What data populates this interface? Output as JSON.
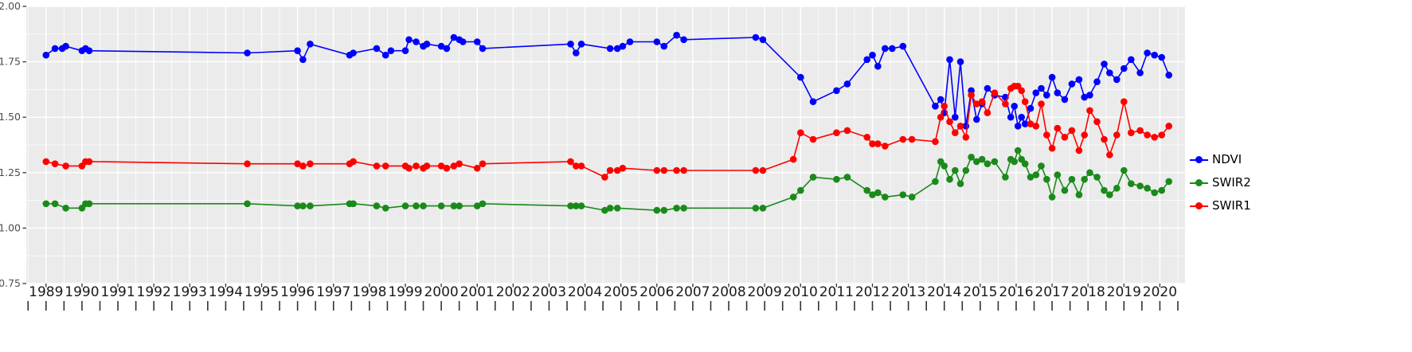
{
  "figure": {
    "background": "#FFFFFF",
    "panel_background": "#EBEBEB",
    "grid_major_color": "#FFFFFF",
    "grid_minor_color": "#F7F7F7",
    "tick_color": "#333333",
    "y_label_color": "#4D4D4D",
    "x_label_color": "#1A1A1A"
  },
  "chart_data": {
    "type": "line",
    "title": "",
    "xlabel": "",
    "ylabel": "",
    "grid": true,
    "legend_position": "right",
    "xlim": [
      1988.45,
      2020.7
    ],
    "ylim": [
      0.75,
      2.0
    ],
    "x_tick_labels": [
      "1989",
      "1990",
      "1991",
      "1992",
      "1993",
      "1994",
      "1995",
      "1996",
      "1997",
      "1998",
      "1999",
      "2000",
      "2001",
      "2002",
      "2003",
      "2004",
      "2005",
      "2006",
      "2007",
      "2008",
      "2009",
      "2010",
      "2011",
      "2012",
      "2013",
      "2014",
      "2015",
      "2016",
      "2017",
      "2018",
      "2019",
      "2020"
    ],
    "y_tick_labels": [
      "2.00",
      "1.75",
      "1.50",
      "1.25",
      "1.00",
      "0.75"
    ],
    "y_tick_values": [
      2.0,
      1.75,
      1.5,
      1.25,
      1.0,
      0.75
    ],
    "series": [
      {
        "name": "NDVI",
        "color": "#0000FF",
        "points": [
          [
            1989.0,
            1.78
          ],
          [
            1989.25,
            1.81
          ],
          [
            1989.45,
            1.81
          ],
          [
            1989.55,
            1.82
          ],
          [
            1990.0,
            1.8
          ],
          [
            1990.1,
            1.81
          ],
          [
            1990.2,
            1.8
          ],
          [
            1994.6,
            1.79
          ],
          [
            1996.0,
            1.8
          ],
          [
            1996.15,
            1.76
          ],
          [
            1996.35,
            1.83
          ],
          [
            1997.45,
            1.78
          ],
          [
            1997.55,
            1.79
          ],
          [
            1998.2,
            1.81
          ],
          [
            1998.45,
            1.78
          ],
          [
            1998.6,
            1.8
          ],
          [
            1999.0,
            1.8
          ],
          [
            1999.1,
            1.85
          ],
          [
            1999.3,
            1.84
          ],
          [
            1999.5,
            1.82
          ],
          [
            1999.6,
            1.83
          ],
          [
            2000.0,
            1.82
          ],
          [
            2000.15,
            1.81
          ],
          [
            2000.35,
            1.86
          ],
          [
            2000.5,
            1.85
          ],
          [
            2000.6,
            1.84
          ],
          [
            2001.0,
            1.84
          ],
          [
            2001.15,
            1.81
          ],
          [
            2003.6,
            1.83
          ],
          [
            2003.75,
            1.79
          ],
          [
            2003.9,
            1.83
          ],
          [
            2004.7,
            1.81
          ],
          [
            2004.9,
            1.81
          ],
          [
            2005.05,
            1.82
          ],
          [
            2005.25,
            1.84
          ],
          [
            2006.0,
            1.84
          ],
          [
            2006.2,
            1.82
          ],
          [
            2006.55,
            1.87
          ],
          [
            2006.75,
            1.85
          ],
          [
            2008.75,
            1.86
          ],
          [
            2008.95,
            1.85
          ],
          [
            2010.0,
            1.68
          ],
          [
            2010.35,
            1.57
          ],
          [
            2011.0,
            1.62
          ],
          [
            2011.3,
            1.65
          ],
          [
            2011.85,
            1.76
          ],
          [
            2012.0,
            1.78
          ],
          [
            2012.15,
            1.73
          ],
          [
            2012.35,
            1.81
          ],
          [
            2012.55,
            1.81
          ],
          [
            2012.85,
            1.82
          ],
          [
            2013.75,
            1.55
          ],
          [
            2013.9,
            1.58
          ],
          [
            2014.0,
            1.52
          ],
          [
            2014.15,
            1.76
          ],
          [
            2014.3,
            1.5
          ],
          [
            2014.45,
            1.75
          ],
          [
            2014.6,
            1.46
          ],
          [
            2014.75,
            1.62
          ],
          [
            2014.9,
            1.49
          ],
          [
            2015.05,
            1.56
          ],
          [
            2015.2,
            1.63
          ],
          [
            2015.4,
            1.6
          ],
          [
            2015.7,
            1.59
          ],
          [
            2015.85,
            1.5
          ],
          [
            2015.95,
            1.55
          ],
          [
            2016.05,
            1.46
          ],
          [
            2016.15,
            1.5
          ],
          [
            2016.25,
            1.47
          ],
          [
            2016.4,
            1.54
          ],
          [
            2016.55,
            1.61
          ],
          [
            2016.7,
            1.63
          ],
          [
            2016.85,
            1.6
          ],
          [
            2017.0,
            1.68
          ],
          [
            2017.15,
            1.61
          ],
          [
            2017.35,
            1.58
          ],
          [
            2017.55,
            1.65
          ],
          [
            2017.75,
            1.67
          ],
          [
            2017.9,
            1.59
          ],
          [
            2018.05,
            1.6
          ],
          [
            2018.25,
            1.66
          ],
          [
            2018.45,
            1.74
          ],
          [
            2018.6,
            1.7
          ],
          [
            2018.8,
            1.67
          ],
          [
            2019.0,
            1.72
          ],
          [
            2019.2,
            1.76
          ],
          [
            2019.45,
            1.7
          ],
          [
            2019.65,
            1.79
          ],
          [
            2019.85,
            1.78
          ],
          [
            2020.05,
            1.77
          ],
          [
            2020.25,
            1.69
          ]
        ]
      },
      {
        "name": "SWIR2",
        "color": "#1A8A1A",
        "points": [
          [
            1989.0,
            1.11
          ],
          [
            1989.25,
            1.11
          ],
          [
            1989.55,
            1.09
          ],
          [
            1990.0,
            1.09
          ],
          [
            1990.1,
            1.11
          ],
          [
            1990.2,
            1.11
          ],
          [
            1994.6,
            1.11
          ],
          [
            1996.0,
            1.1
          ],
          [
            1996.15,
            1.1
          ],
          [
            1996.35,
            1.1
          ],
          [
            1997.45,
            1.11
          ],
          [
            1997.55,
            1.11
          ],
          [
            1998.2,
            1.1
          ],
          [
            1998.45,
            1.09
          ],
          [
            1999.0,
            1.1
          ],
          [
            1999.3,
            1.1
          ],
          [
            1999.5,
            1.1
          ],
          [
            2000.0,
            1.1
          ],
          [
            2000.35,
            1.1
          ],
          [
            2000.5,
            1.1
          ],
          [
            2001.0,
            1.1
          ],
          [
            2001.15,
            1.11
          ],
          [
            2003.6,
            1.1
          ],
          [
            2003.75,
            1.1
          ],
          [
            2003.9,
            1.1
          ],
          [
            2004.55,
            1.08
          ],
          [
            2004.7,
            1.09
          ],
          [
            2004.9,
            1.09
          ],
          [
            2006.0,
            1.08
          ],
          [
            2006.2,
            1.08
          ],
          [
            2006.55,
            1.09
          ],
          [
            2006.75,
            1.09
          ],
          [
            2008.75,
            1.09
          ],
          [
            2008.95,
            1.09
          ],
          [
            2009.8,
            1.14
          ],
          [
            2010.0,
            1.17
          ],
          [
            2010.35,
            1.23
          ],
          [
            2011.0,
            1.22
          ],
          [
            2011.3,
            1.23
          ],
          [
            2011.85,
            1.17
          ],
          [
            2012.0,
            1.15
          ],
          [
            2012.15,
            1.16
          ],
          [
            2012.35,
            1.14
          ],
          [
            2012.85,
            1.15
          ],
          [
            2013.1,
            1.14
          ],
          [
            2013.75,
            1.21
          ],
          [
            2013.9,
            1.3
          ],
          [
            2014.0,
            1.28
          ],
          [
            2014.15,
            1.22
          ],
          [
            2014.3,
            1.26
          ],
          [
            2014.45,
            1.2
          ],
          [
            2014.6,
            1.26
          ],
          [
            2014.75,
            1.32
          ],
          [
            2014.9,
            1.3
          ],
          [
            2015.05,
            1.31
          ],
          [
            2015.2,
            1.29
          ],
          [
            2015.4,
            1.3
          ],
          [
            2015.7,
            1.23
          ],
          [
            2015.85,
            1.31
          ],
          [
            2015.95,
            1.3
          ],
          [
            2016.05,
            1.35
          ],
          [
            2016.15,
            1.31
          ],
          [
            2016.25,
            1.29
          ],
          [
            2016.4,
            1.23
          ],
          [
            2016.55,
            1.24
          ],
          [
            2016.7,
            1.28
          ],
          [
            2016.85,
            1.22
          ],
          [
            2017.0,
            1.14
          ],
          [
            2017.15,
            1.24
          ],
          [
            2017.35,
            1.17
          ],
          [
            2017.55,
            1.22
          ],
          [
            2017.75,
            1.15
          ],
          [
            2017.9,
            1.22
          ],
          [
            2018.05,
            1.25
          ],
          [
            2018.25,
            1.23
          ],
          [
            2018.45,
            1.17
          ],
          [
            2018.6,
            1.15
          ],
          [
            2018.8,
            1.18
          ],
          [
            2019.0,
            1.26
          ],
          [
            2019.2,
            1.2
          ],
          [
            2019.45,
            1.19
          ],
          [
            2019.65,
            1.18
          ],
          [
            2019.85,
            1.16
          ],
          [
            2020.05,
            1.17
          ],
          [
            2020.25,
            1.21
          ]
        ]
      },
      {
        "name": "SWIR1",
        "color": "#FF0000",
        "points": [
          [
            1989.0,
            1.3
          ],
          [
            1989.25,
            1.29
          ],
          [
            1989.55,
            1.28
          ],
          [
            1990.0,
            1.28
          ],
          [
            1990.1,
            1.3
          ],
          [
            1990.2,
            1.3
          ],
          [
            1994.6,
            1.29
          ],
          [
            1996.0,
            1.29
          ],
          [
            1996.15,
            1.28
          ],
          [
            1996.35,
            1.29
          ],
          [
            1997.45,
            1.29
          ],
          [
            1997.55,
            1.3
          ],
          [
            1998.2,
            1.28
          ],
          [
            1998.45,
            1.28
          ],
          [
            1999.0,
            1.28
          ],
          [
            1999.1,
            1.27
          ],
          [
            1999.3,
            1.28
          ],
          [
            1999.5,
            1.27
          ],
          [
            1999.6,
            1.28
          ],
          [
            2000.0,
            1.28
          ],
          [
            2000.15,
            1.27
          ],
          [
            2000.35,
            1.28
          ],
          [
            2000.5,
            1.29
          ],
          [
            2001.0,
            1.27
          ],
          [
            2001.15,
            1.29
          ],
          [
            2003.6,
            1.3
          ],
          [
            2003.75,
            1.28
          ],
          [
            2003.9,
            1.28
          ],
          [
            2004.55,
            1.23
          ],
          [
            2004.7,
            1.26
          ],
          [
            2004.9,
            1.26
          ],
          [
            2005.05,
            1.27
          ],
          [
            2006.0,
            1.26
          ],
          [
            2006.2,
            1.26
          ],
          [
            2006.55,
            1.26
          ],
          [
            2006.75,
            1.26
          ],
          [
            2008.75,
            1.26
          ],
          [
            2008.95,
            1.26
          ],
          [
            2009.8,
            1.31
          ],
          [
            2010.0,
            1.43
          ],
          [
            2010.35,
            1.4
          ],
          [
            2011.0,
            1.43
          ],
          [
            2011.3,
            1.44
          ],
          [
            2011.85,
            1.41
          ],
          [
            2012.0,
            1.38
          ],
          [
            2012.15,
            1.38
          ],
          [
            2012.35,
            1.37
          ],
          [
            2012.85,
            1.4
          ],
          [
            2013.1,
            1.4
          ],
          [
            2013.75,
            1.39
          ],
          [
            2013.9,
            1.5
          ],
          [
            2014.0,
            1.55
          ],
          [
            2014.15,
            1.48
          ],
          [
            2014.3,
            1.43
          ],
          [
            2014.45,
            1.46
          ],
          [
            2014.6,
            1.41
          ],
          [
            2014.75,
            1.6
          ],
          [
            2014.9,
            1.56
          ],
          [
            2015.05,
            1.57
          ],
          [
            2015.2,
            1.52
          ],
          [
            2015.4,
            1.61
          ],
          [
            2015.7,
            1.56
          ],
          [
            2015.85,
            1.63
          ],
          [
            2015.95,
            1.64
          ],
          [
            2016.05,
            1.64
          ],
          [
            2016.15,
            1.62
          ],
          [
            2016.25,
            1.57
          ],
          [
            2016.4,
            1.47
          ],
          [
            2016.55,
            1.46
          ],
          [
            2016.7,
            1.56
          ],
          [
            2016.85,
            1.42
          ],
          [
            2017.0,
            1.36
          ],
          [
            2017.15,
            1.45
          ],
          [
            2017.35,
            1.41
          ],
          [
            2017.55,
            1.44
          ],
          [
            2017.75,
            1.35
          ],
          [
            2017.9,
            1.42
          ],
          [
            2018.05,
            1.53
          ],
          [
            2018.25,
            1.48
          ],
          [
            2018.45,
            1.4
          ],
          [
            2018.6,
            1.33
          ],
          [
            2018.8,
            1.42
          ],
          [
            2019.0,
            1.57
          ],
          [
            2019.2,
            1.43
          ],
          [
            2019.45,
            1.44
          ],
          [
            2019.65,
            1.42
          ],
          [
            2019.85,
            1.41
          ],
          [
            2020.05,
            1.42
          ],
          [
            2020.25,
            1.46
          ]
        ]
      }
    ]
  }
}
